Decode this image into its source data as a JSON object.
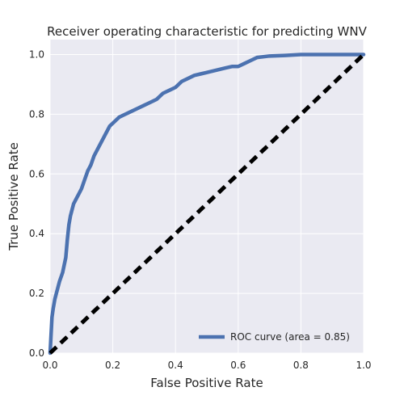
{
  "chart_data": {
    "type": "line",
    "title": "Receiver operating characteristic for predicting WNV",
    "xlabel": "False Positive Rate",
    "ylabel": "True Positive Rate",
    "xlim": [
      0,
      1
    ],
    "ylim": [
      0,
      1.05
    ],
    "xticks": [
      "0.0",
      "0.2",
      "0.4",
      "0.6",
      "0.8",
      "1.0"
    ],
    "yticks": [
      "0.0",
      "0.2",
      "0.4",
      "0.6",
      "0.8",
      "1.0"
    ],
    "grid": true,
    "legend_position": "lower-right",
    "colors": {
      "background": "#eaeaf2",
      "grid": "#ffffff",
      "roc": "#4c72b0",
      "chance": "#000000"
    },
    "series": [
      {
        "name": "ROC curve (area = 0.85)",
        "style": "solid",
        "x": [
          0.0,
          0.003,
          0.006,
          0.01,
          0.015,
          0.02,
          0.025,
          0.03,
          0.04,
          0.05,
          0.055,
          0.06,
          0.065,
          0.07,
          0.075,
          0.08,
          0.085,
          0.09,
          0.1,
          0.11,
          0.12,
          0.125,
          0.13,
          0.14,
          0.15,
          0.16,
          0.17,
          0.18,
          0.19,
          0.2,
          0.22,
          0.24,
          0.26,
          0.28,
          0.3,
          0.32,
          0.34,
          0.36,
          0.38,
          0.4,
          0.42,
          0.44,
          0.46,
          0.48,
          0.5,
          0.52,
          0.54,
          0.56,
          0.58,
          0.6,
          0.62,
          0.64,
          0.66,
          0.7,
          0.75,
          0.8,
          0.85,
          0.9,
          0.95,
          1.0
        ],
        "y": [
          0.0,
          0.06,
          0.12,
          0.15,
          0.18,
          0.2,
          0.22,
          0.24,
          0.27,
          0.32,
          0.38,
          0.43,
          0.46,
          0.48,
          0.5,
          0.51,
          0.52,
          0.53,
          0.55,
          0.58,
          0.61,
          0.62,
          0.63,
          0.66,
          0.68,
          0.7,
          0.72,
          0.74,
          0.76,
          0.77,
          0.79,
          0.8,
          0.81,
          0.82,
          0.83,
          0.84,
          0.85,
          0.87,
          0.88,
          0.89,
          0.91,
          0.92,
          0.93,
          0.935,
          0.94,
          0.945,
          0.95,
          0.955,
          0.96,
          0.96,
          0.97,
          0.98,
          0.99,
          0.995,
          0.997,
          1.0,
          1.0,
          1.0,
          1.0,
          1.0
        ]
      },
      {
        "style": "dashed",
        "x": [
          0,
          1
        ],
        "y": [
          0,
          1
        ]
      }
    ]
  }
}
